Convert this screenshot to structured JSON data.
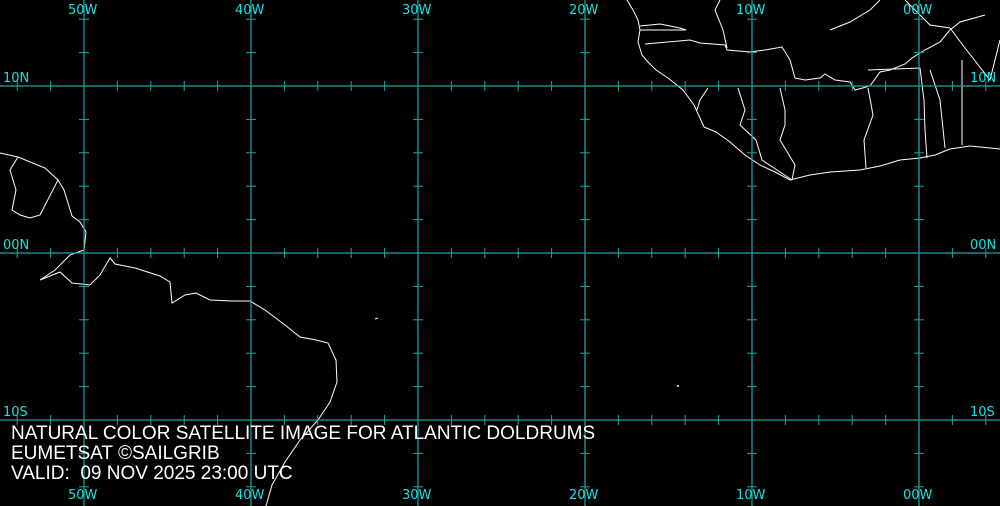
{
  "map": {
    "lon_labels": [
      "50W",
      "40W",
      "30W",
      "20W",
      "10W",
      "00W"
    ],
    "lat_labels": [
      "10N",
      "00N",
      "10S"
    ],
    "grid_color": "#1aa6a6",
    "label_color": "#19e0e0",
    "coast_color": "#ffffff"
  },
  "caption": {
    "title": "NATURAL COLOR SATELLITE IMAGE FOR ATLANTIC DOLDRUMS",
    "credit": "EUMETSAT ©SAILGRIB",
    "valid": "VALID:  09 NOV 2025 23:00 UTC"
  }
}
